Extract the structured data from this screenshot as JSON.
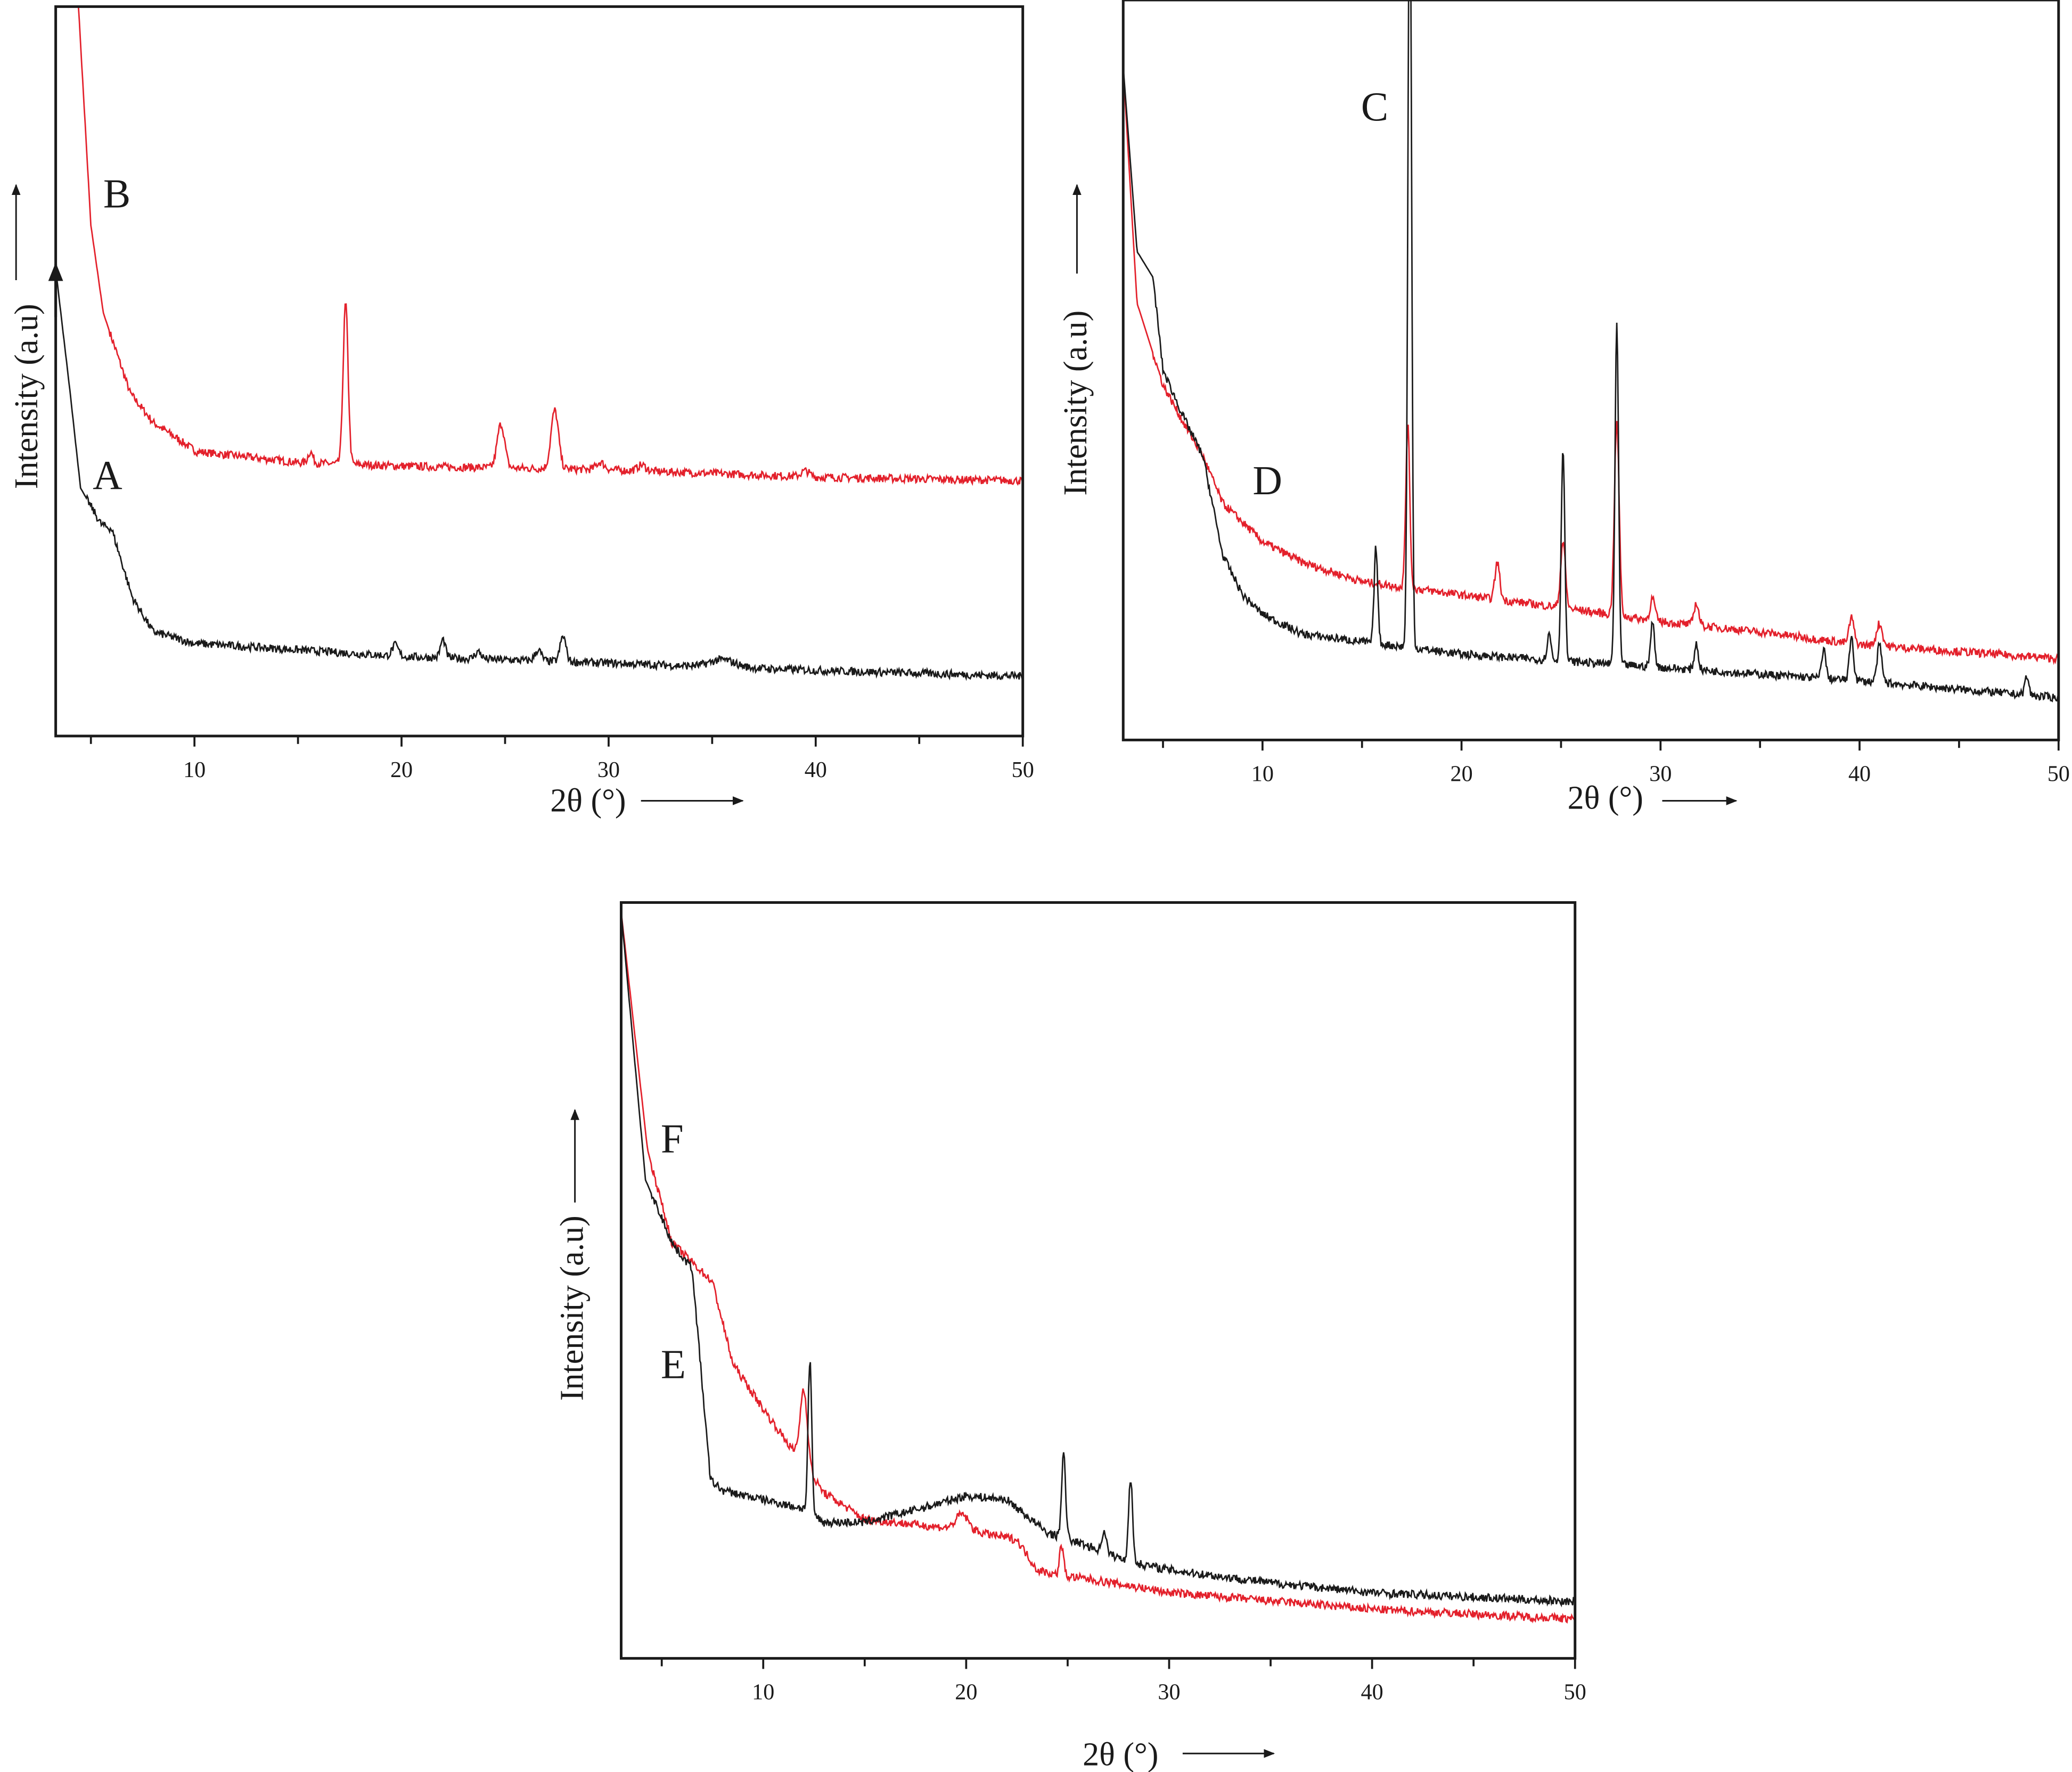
{
  "chart_data": [
    {
      "type": "line",
      "title": "",
      "xlabel": "2θ (°)",
      "ylabel": "Intensity (a.u)",
      "xlim": [
        3.3,
        50
      ],
      "ylim": [
        0,
        100
      ],
      "xticks": [
        "10",
        "20",
        "30",
        "40",
        "50"
      ],
      "grid": false,
      "series": [
        {
          "name": "B",
          "color": "#e3202b",
          "baseline": [
            [
              4.4,
              100
            ],
            [
              5,
              70
            ],
            [
              5.6,
              58
            ],
            [
              6.9,
              47
            ],
            [
              8,
              43
            ],
            [
              10.1,
              39
            ],
            [
              15,
              37.5
            ],
            [
              20,
              37
            ],
            [
              30,
              36.5
            ],
            [
              40,
              35.5
            ],
            [
              50,
              35
            ]
          ],
          "peaks": [
            [
              15.6,
              1.5,
              0.12
            ],
            [
              17.3,
              22,
              0.12
            ],
            [
              24.8,
              6,
              0.18
            ],
            [
              27.4,
              8,
              0.18
            ],
            [
              29.6,
              1,
              0.2
            ],
            [
              31.6,
              0.8,
              0.2
            ],
            [
              39.5,
              0.8,
              0.2
            ]
          ]
        },
        {
          "name": "A",
          "color": "#1a1a1a",
          "baseline": [
            [
              3.3,
              64
            ],
            [
              4,
              47
            ],
            [
              4.5,
              34
            ],
            [
              5.5,
              29
            ],
            [
              6,
              28.4
            ],
            [
              7,
              19
            ],
            [
              8,
              14.3
            ],
            [
              10,
              12.7
            ],
            [
              20,
              10.9
            ],
            [
              30,
              10
            ],
            [
              40,
              9
            ],
            [
              50,
              8.2
            ]
          ],
          "peaks": [
            [
              19.7,
              1.5,
              0.15
            ],
            [
              22,
              2.5,
              0.12
            ],
            [
              23.7,
              1,
              0.15
            ],
            [
              26.6,
              1.5,
              0.15
            ],
            [
              27.8,
              3.5,
              0.14
            ],
            [
              35.5,
              1,
              0.6
            ]
          ]
        }
      ]
    },
    {
      "type": "line",
      "title": "",
      "xlabel": "2θ (°)",
      "ylabel": "Intensity (a.u)",
      "xlim": [
        3,
        50
      ],
      "ylim": [
        0,
        100
      ],
      "xticks": [
        "10",
        "20",
        "30",
        "40",
        "50"
      ],
      "grid": false,
      "series": [
        {
          "name": "D",
          "color": "#e3202b",
          "baseline": [
            [
              3,
              91
            ],
            [
              3.7,
              59
            ],
            [
              5,
              48
            ],
            [
              6,
              43
            ],
            [
              7,
              38.4
            ],
            [
              8,
              32
            ],
            [
              10,
              26.8
            ],
            [
              12,
              24
            ],
            [
              15,
              21.4
            ],
            [
              20,
              19.6
            ],
            [
              25,
              17.9
            ],
            [
              30,
              16
            ],
            [
              35,
              14.6
            ],
            [
              40,
              12.9
            ],
            [
              50,
              11
            ]
          ],
          "peaks": [
            [
              17.3,
              22,
              0.1
            ],
            [
              21.8,
              5,
              0.12
            ],
            [
              25.1,
              9,
              0.12
            ],
            [
              27.8,
              26,
              0.12
            ],
            [
              29.6,
              3,
              0.12
            ],
            [
              31.8,
              3,
              0.12
            ],
            [
              39.6,
              3.5,
              0.12
            ],
            [
              41,
              3,
              0.15
            ]
          ]
        },
        {
          "name": "C",
          "color": "#1a1a1a",
          "baseline": [
            [
              3,
              91
            ],
            [
              3.7,
              66
            ],
            [
              4.5,
              62.5
            ],
            [
              5,
              50
            ],
            [
              6,
              43.8
            ],
            [
              7,
              38.4
            ],
            [
              8,
              25
            ],
            [
              9,
              19.6
            ],
            [
              10,
              17
            ],
            [
              12,
              14.3
            ],
            [
              20,
              11.6
            ],
            [
              30,
              9.8
            ],
            [
              40,
              8
            ],
            [
              50,
              5.7
            ]
          ],
          "peaks": [
            [
              15.7,
              13,
              0.09
            ],
            [
              17.4,
              110,
              0.09
            ],
            [
              24.4,
              3.5,
              0.1
            ],
            [
              25.1,
              29,
              0.09
            ],
            [
              27.8,
              46,
              0.09
            ],
            [
              29.6,
              6,
              0.1
            ],
            [
              31.8,
              3.5,
              0.1
            ],
            [
              38.2,
              4,
              0.1
            ],
            [
              39.6,
              6,
              0.1
            ],
            [
              41,
              5,
              0.12
            ],
            [
              48.4,
              2.5,
              0.1
            ]
          ]
        }
      ]
    },
    {
      "type": "line",
      "title": "",
      "xlabel": "2θ (°)",
      "ylabel": "Intensity (a.u)",
      "xlim": [
        3,
        50
      ],
      "ylim": [
        0,
        100
      ],
      "xticks": [
        "10",
        "20",
        "30",
        "40",
        "50"
      ],
      "grid": false,
      "series": [
        {
          "name": "F",
          "color": "#e3202b",
          "baseline": [
            [
              3,
              98.8
            ],
            [
              4.3,
              67.3
            ],
            [
              5.5,
              55
            ],
            [
              7.5,
              49.8
            ],
            [
              8.5,
              39
            ],
            [
              10,
              33
            ],
            [
              11.6,
              27
            ],
            [
              13,
              21.9
            ],
            [
              15,
              18.4
            ],
            [
              20,
              17
            ],
            [
              22.5,
              15.7
            ],
            [
              23.5,
              11.7
            ],
            [
              24.5,
              11
            ],
            [
              26,
              10.5
            ],
            [
              30,
              8.7
            ],
            [
              40,
              6.5
            ],
            [
              50,
              5.2
            ]
          ],
          "peaks": [
            [
              12.0,
              10,
              0.18
            ],
            [
              19.8,
              2,
              0.3
            ],
            [
              24.7,
              4,
              0.1
            ]
          ]
        },
        {
          "name": "E",
          "color": "#1a1a1a",
          "baseline": [
            [
              3,
              98.8
            ],
            [
              4.2,
              63.3
            ],
            [
              5.6,
              54.5
            ],
            [
              6.5,
              51.6
            ],
            [
              7.4,
              23.6
            ],
            [
              8,
              22.2
            ],
            [
              10,
              21
            ],
            [
              12,
              19.8
            ],
            [
              13,
              18
            ],
            [
              15,
              18
            ],
            [
              18,
              20
            ],
            [
              20,
              21.5
            ],
            [
              22,
              21
            ],
            [
              24,
              16.6
            ],
            [
              26,
              14.9
            ],
            [
              28,
              12.8
            ],
            [
              30,
              11.7
            ],
            [
              35,
              10
            ],
            [
              40,
              8.7
            ],
            [
              50,
              7.5
            ]
          ],
          "peaks": [
            [
              12.3,
              20,
              0.09
            ],
            [
              24.8,
              11,
              0.1
            ],
            [
              26.8,
              3,
              0.1
            ],
            [
              28.1,
              11,
              0.1
            ]
          ]
        }
      ]
    }
  ]
}
